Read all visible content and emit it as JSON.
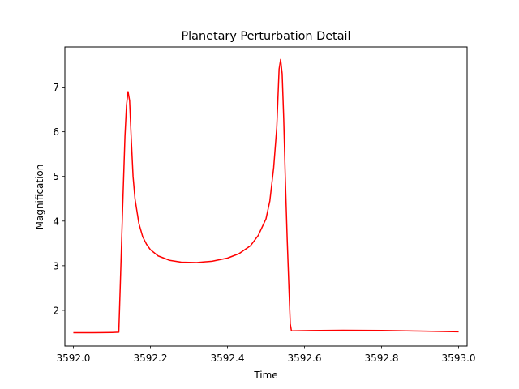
{
  "chart_data": {
    "type": "line",
    "title": "Planetary Perturbation Detail",
    "xlabel": "Time",
    "ylabel": "Magnification",
    "xlim": [
      3591.978,
      3593.022
    ],
    "ylim": [
      1.2,
      7.9
    ],
    "xticks": [
      3592.0,
      3592.2,
      3592.4,
      3592.6,
      3592.8,
      3593.0
    ],
    "xtick_labels": [
      "3592.0",
      "3592.2",
      "3592.4",
      "3592.6",
      "3592.8",
      "3593.0"
    ],
    "yticks": [
      2,
      3,
      4,
      5,
      6,
      7
    ],
    "ytick_labels": [
      "2",
      "3",
      "4",
      "5",
      "6",
      "7"
    ],
    "grid": false,
    "legend": "none",
    "series": [
      {
        "color": "#ff0000",
        "x": [
          3592.0,
          3592.05,
          3592.1,
          3592.118,
          3592.122,
          3592.128,
          3592.134,
          3592.138,
          3592.142,
          3592.146,
          3592.15,
          3592.155,
          3592.16,
          3592.17,
          3592.18,
          3592.19,
          3592.2,
          3592.22,
          3592.25,
          3592.28,
          3592.32,
          3592.36,
          3592.4,
          3592.43,
          3592.46,
          3592.48,
          3592.5,
          3592.51,
          3592.52,
          3592.528,
          3592.534,
          3592.538,
          3592.542,
          3592.546,
          3592.55,
          3592.555,
          3592.56,
          3592.563,
          3592.566,
          3592.6,
          3592.7,
          3592.8,
          3592.9,
          3593.0
        ],
        "y": [
          1.5,
          1.5,
          1.505,
          1.51,
          2.6,
          4.3,
          5.9,
          6.6,
          6.9,
          6.7,
          5.9,
          5.0,
          4.5,
          3.95,
          3.65,
          3.48,
          3.36,
          3.22,
          3.12,
          3.08,
          3.07,
          3.1,
          3.17,
          3.27,
          3.45,
          3.68,
          4.05,
          4.45,
          5.2,
          6.1,
          7.4,
          7.62,
          7.3,
          6.3,
          5.0,
          3.6,
          2.4,
          1.7,
          1.54,
          1.545,
          1.555,
          1.55,
          1.535,
          1.52
        ]
      }
    ]
  }
}
